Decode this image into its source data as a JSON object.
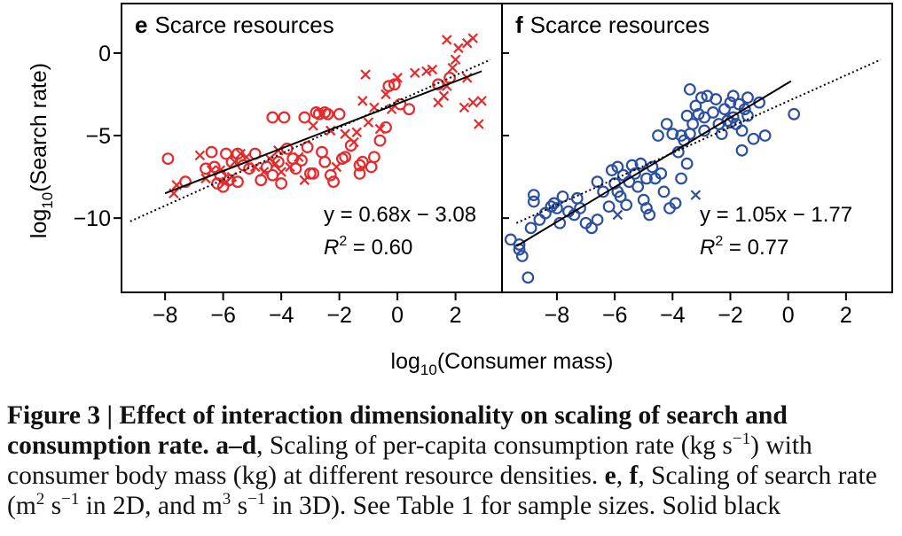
{
  "colors": {
    "red_series": "#e8292b",
    "blue_series": "#2b4fa3",
    "fit_line": "#000000",
    "axis": "#000000"
  },
  "shared_axis": {
    "xlabel_prefix": "log",
    "xlabel_sub": "10",
    "xlabel_rest": "(Consumer mass)",
    "ylabel_prefix": "log",
    "ylabel_sub": "10",
    "ylabel_rest": "(Search rate)"
  },
  "chart_data": [
    {
      "type": "scatter",
      "panel_letter": "e",
      "title": "Scarce resources",
      "xlim": [
        -9.5,
        3.6
      ],
      "ylim": [
        -14.5,
        3.0
      ],
      "xticks": [
        -8,
        -6,
        -4,
        -2,
        0,
        2
      ],
      "xtick_labels": [
        "−8",
        "−6",
        "−4",
        "−2",
        "0",
        "2"
      ],
      "yticks": [
        0,
        -5,
        -10
      ],
      "ytick_labels": [
        "0",
        "−5",
        "−10"
      ],
      "equation": "y = 0.68x − 3.08",
      "r2_label": "R",
      "r2_sup": "2",
      "r2_value": " = 0.60",
      "fit_solid": {
        "x": [
          -8.0,
          2.9
        ],
        "y": [
          -8.5,
          -1.1
        ]
      },
      "fit_dotted": {
        "x": [
          -9.2,
          3.2
        ],
        "y": [
          -10.2,
          -0.4
        ]
      },
      "series": [
        {
          "marker": "circle",
          "color": "#e8292b",
          "points": [
            [
              -7.9,
              -6.4
            ],
            [
              -7.3,
              -7.8
            ],
            [
              -6.6,
              -7.0
            ],
            [
              -6.4,
              -6.0
            ],
            [
              -6.3,
              -6.9
            ],
            [
              -6.2,
              -7.9
            ],
            [
              -6.1,
              -7.4
            ],
            [
              -6.0,
              -8.1
            ],
            [
              -5.9,
              -6.1
            ],
            [
              -5.8,
              -7.7
            ],
            [
              -5.7,
              -6.6
            ],
            [
              -5.5,
              -6.1
            ],
            [
              -5.5,
              -7.8
            ],
            [
              -5.3,
              -6.8
            ],
            [
              -5.1,
              -7.0
            ],
            [
              -4.9,
              -6.1
            ],
            [
              -4.7,
              -7.7
            ],
            [
              -4.5,
              -6.9
            ],
            [
              -4.3,
              -3.9
            ],
            [
              -4.3,
              -7.4
            ],
            [
              -4.1,
              -6.6
            ],
            [
              -4.0,
              -7.9
            ],
            [
              -3.9,
              -3.9
            ],
            [
              -3.8,
              -5.8
            ],
            [
              -3.6,
              -6.4
            ],
            [
              -3.5,
              -7.0
            ],
            [
              -3.3,
              -6.5
            ],
            [
              -3.2,
              -3.9
            ],
            [
              -3.1,
              -5.7
            ],
            [
              -3.0,
              -7.3
            ],
            [
              -2.9,
              -7.3
            ],
            [
              -2.8,
              -3.6
            ],
            [
              -2.7,
              -3.7
            ],
            [
              -2.6,
              -6.0
            ],
            [
              -2.5,
              -6.6
            ],
            [
              -2.5,
              -3.6
            ],
            [
              -2.4,
              -3.7
            ],
            [
              -2.3,
              -7.4
            ],
            [
              -2.2,
              -7.8
            ],
            [
              -2.0,
              -3.7
            ],
            [
              -1.9,
              -6.4
            ],
            [
              -1.8,
              -6.3
            ],
            [
              -1.6,
              -5.6
            ],
            [
              -1.3,
              -6.8
            ],
            [
              -1.3,
              -7.3
            ],
            [
              -1.2,
              -6.6
            ],
            [
              -0.9,
              -6.9
            ],
            [
              -0.8,
              -6.3
            ],
            [
              -0.6,
              -5.3
            ],
            [
              -0.4,
              -4.5
            ],
            [
              -0.3,
              -2.0
            ],
            [
              -0.1,
              -1.9
            ],
            [
              0.1,
              -3.1
            ],
            [
              0.4,
              -3.4
            ],
            [
              1.4,
              -1.9
            ],
            [
              1.8,
              -1.5
            ]
          ]
        },
        {
          "marker": "x",
          "color": "#e8292b",
          "points": [
            [
              -7.7,
              -8.5
            ],
            [
              -7.6,
              -8.0
            ],
            [
              -6.8,
              -6.2
            ],
            [
              -6.6,
              -7.6
            ],
            [
              -6.4,
              -7.1
            ],
            [
              -6.1,
              -7.1
            ],
            [
              -5.9,
              -7.8
            ],
            [
              -5.7,
              -7.5
            ],
            [
              -5.6,
              -6.6
            ],
            [
              -5.4,
              -6.1
            ],
            [
              -5.2,
              -6.3
            ],
            [
              -4.9,
              -6.9
            ],
            [
              -4.6,
              -7.2
            ],
            [
              -4.4,
              -6.4
            ],
            [
              -4.2,
              -6.7
            ],
            [
              -4.1,
              -5.9
            ],
            [
              -4.0,
              -7.2
            ],
            [
              -3.7,
              -6.9
            ],
            [
              -3.4,
              -6.3
            ],
            [
              -3.2,
              -7.7
            ],
            [
              -2.9,
              -4.4
            ],
            [
              -2.6,
              -3.7
            ],
            [
              -2.3,
              -4.7
            ],
            [
              -2.1,
              -6.9
            ],
            [
              -1.8,
              -4.9
            ],
            [
              -1.5,
              -5.4
            ],
            [
              -1.4,
              -4.8
            ],
            [
              -1.2,
              -2.9
            ],
            [
              -1.1,
              -1.3
            ],
            [
              -1.0,
              -4.2
            ],
            [
              -0.8,
              -3.3
            ],
            [
              -0.6,
              -4.6
            ],
            [
              -0.4,
              -2.5
            ],
            [
              -0.2,
              -3.4
            ],
            [
              0.0,
              -1.5
            ],
            [
              0.6,
              -1.2
            ],
            [
              1.0,
              -1.1
            ],
            [
              1.2,
              -1.0
            ],
            [
              1.4,
              -3.0
            ],
            [
              1.7,
              -2.0
            ],
            [
              1.9,
              -0.9
            ],
            [
              2.0,
              -0.4
            ],
            [
              2.1,
              0.3
            ],
            [
              2.4,
              -1.5
            ],
            [
              2.4,
              0.6
            ],
            [
              2.6,
              0.9
            ],
            [
              1.7,
              0.8
            ],
            [
              2.3,
              -3.3
            ],
            [
              2.6,
              -3.0
            ],
            [
              2.9,
              -2.9
            ],
            [
              2.8,
              -4.3
            ],
            [
              1.6,
              -2.6
            ]
          ]
        }
      ]
    },
    {
      "type": "scatter",
      "panel_letter": "f",
      "title": "Scarce resources",
      "xlim": [
        -9.9,
        3.6
      ],
      "ylim": [
        -14.5,
        3.0
      ],
      "xticks": [
        -8,
        -6,
        -4,
        -2,
        0,
        2
      ],
      "xtick_labels": [
        "−8",
        "−6",
        "−4",
        "−2",
        "0",
        "2"
      ],
      "yticks": [
        0,
        -5,
        -10
      ],
      "ytick_labels": [
        "0",
        "−5",
        "−10"
      ],
      "equation": "y = 1.05x − 1.77",
      "r2_label": "R",
      "r2_sup": "2",
      "r2_value": " = 0.77",
      "fit_solid": {
        "x": [
          -9.4,
          0.1
        ],
        "y": [
          -11.7,
          -1.7
        ]
      },
      "fit_dotted": {
        "x": [
          -9.4,
          3.2
        ],
        "y": [
          -10.3,
          -0.4
        ]
      },
      "series": [
        {
          "marker": "circle",
          "color": "#2b4fa3",
          "points": [
            [
              -9.6,
              -11.3
            ],
            [
              -9.3,
              -11.6
            ],
            [
              -9.2,
              -12.3
            ],
            [
              -9.3,
              -11.9
            ],
            [
              -9.0,
              -13.6
            ],
            [
              -8.9,
              -10.6
            ],
            [
              -8.8,
              -8.6
            ],
            [
              -8.8,
              -9.0
            ],
            [
              -8.6,
              -10.1
            ],
            [
              -8.4,
              -9.7
            ],
            [
              -8.2,
              -9.3
            ],
            [
              -8.1,
              -9.1
            ],
            [
              -8.0,
              -9.4
            ],
            [
              -7.9,
              -10.3
            ],
            [
              -7.8,
              -8.7
            ],
            [
              -7.6,
              -9.6
            ],
            [
              -7.4,
              -9.8
            ],
            [
              -7.3,
              -8.8
            ],
            [
              -7.2,
              -9.4
            ],
            [
              -7.0,
              -10.3
            ],
            [
              -6.8,
              -10.6
            ],
            [
              -6.6,
              -10.1
            ],
            [
              -6.6,
              -7.8
            ],
            [
              -6.4,
              -8.4
            ],
            [
              -6.2,
              -9.3
            ],
            [
              -6.1,
              -7.1
            ],
            [
              -6.0,
              -7.9
            ],
            [
              -5.9,
              -6.9
            ],
            [
              -5.8,
              -8.7
            ],
            [
              -5.7,
              -7.4
            ],
            [
              -5.6,
              -9.2
            ],
            [
              -5.5,
              -7.8
            ],
            [
              -5.4,
              -6.8
            ],
            [
              -5.3,
              -7.3
            ],
            [
              -5.2,
              -8.1
            ],
            [
              -5.1,
              -6.7
            ],
            [
              -5.0,
              -8.9
            ],
            [
              -4.9,
              -7.6
            ],
            [
              -4.8,
              -9.8
            ],
            [
              -4.7,
              -6.9
            ],
            [
              -4.6,
              -7.6
            ],
            [
              -4.5,
              -5.0
            ],
            [
              -4.4,
              -7.3
            ],
            [
              -4.3,
              -8.4
            ],
            [
              -4.2,
              -4.3
            ],
            [
              -4.1,
              -9.4
            ],
            [
              -4.0,
              -4.9
            ],
            [
              -3.9,
              -9.1
            ],
            [
              -3.8,
              -6.0
            ],
            [
              -3.7,
              -7.6
            ],
            [
              -3.7,
              -5.0
            ],
            [
              -3.6,
              -5.3
            ],
            [
              -3.5,
              -6.7
            ],
            [
              -3.5,
              -3.8
            ],
            [
              -3.4,
              -4.9
            ],
            [
              -3.4,
              -2.2
            ],
            [
              -3.3,
              -4.3
            ],
            [
              -3.2,
              -3.2
            ],
            [
              -3.1,
              -3.7
            ],
            [
              -3.0,
              -2.7
            ],
            [
              -2.9,
              -3.9
            ],
            [
              -2.9,
              -4.7
            ],
            [
              -2.8,
              -2.6
            ],
            [
              -2.6,
              -3.6
            ],
            [
              -2.5,
              -2.8
            ],
            [
              -2.4,
              -4.3
            ],
            [
              -2.3,
              -4.9
            ],
            [
              -2.2,
              -3.4
            ],
            [
              -2.1,
              -4.1
            ],
            [
              -2.0,
              -3.0
            ],
            [
              -1.9,
              -2.6
            ],
            [
              -1.9,
              -3.9
            ],
            [
              -1.8,
              -4.3
            ],
            [
              -1.7,
              -3.1
            ],
            [
              -1.6,
              -4.7
            ],
            [
              -1.5,
              -3.4
            ],
            [
              -1.4,
              -2.7
            ],
            [
              -1.4,
              -3.8
            ],
            [
              -1.2,
              -5.2
            ],
            [
              -1.0,
              -3.0
            ],
            [
              -0.8,
              -5.0
            ],
            [
              0.2,
              -3.7
            ],
            [
              -1.6,
              -5.9
            ],
            [
              -2.0,
              -4.2
            ],
            [
              -4.9,
              -9.4
            ],
            [
              -5.9,
              -8.4
            ]
          ]
        },
        {
          "marker": "x",
          "color": "#2b4fa3",
          "points": [
            [
              -5.9,
              -9.8
            ],
            [
              -3.2,
              -8.6
            ]
          ]
        }
      ]
    }
  ],
  "caption": {
    "fig_label": "Figure 3",
    "separator": " | ",
    "title": "Effect of interaction dimensionality on scaling of search and consumption rate.",
    "panels_ad": "a–d",
    "text1": ", Scaling of per-capita consumption rate (kg s",
    "text1_sup": "−1",
    "text2": ") with consumer body mass (kg) at different resource densities. ",
    "panel_e": "e",
    "comma": ", ",
    "panel_f": "f",
    "text3": ", Scaling of search rate (m",
    "text3_sup": "2",
    "text4": " s",
    "text4_sup": "−1",
    "text5": " in 2D, and m",
    "text5_sup": "3",
    "text6": " s",
    "text6_sup": "−1",
    "text7": " in 3D). See Table 1 for sample sizes. Solid black"
  }
}
